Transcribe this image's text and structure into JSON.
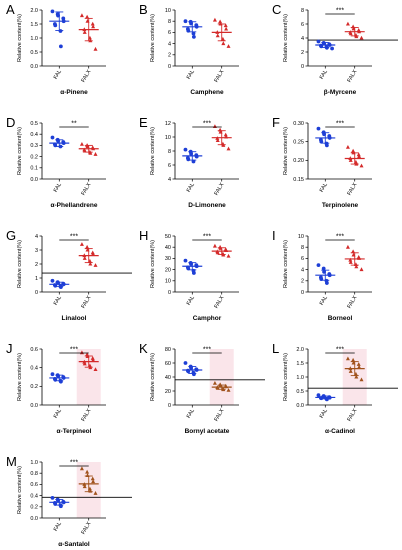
{
  "colors": {
    "fal": "#1e3fd6",
    "falx": "#d42a2a",
    "falx_brown": "#a0521c",
    "highlight": "#f6cfd9",
    "axis": "#000000",
    "refline": "#000000"
  },
  "chart_data": [
    {
      "type": "scatter",
      "panel": "A",
      "title": "α-Pinene",
      "ylabel": "Relative content(%)",
      "categories": [
        "FAL",
        "FALX"
      ],
      "ylim": [
        0,
        2.0
      ],
      "yticks": [
        0,
        0.5,
        1.0,
        1.5,
        2.0
      ],
      "ytick_labels": [
        "0.0",
        "0.5",
        "1.0",
        "1.5",
        "2.0"
      ],
      "significance": "",
      "reference_line": null,
      "series": [
        {
          "values": [
            1.95,
            1.85,
            1.8,
            1.7,
            1.6,
            1.5,
            1.45,
            1.25,
            0.7
          ],
          "mean": 1.6,
          "sd": 0.33,
          "color": "fal"
        },
        {
          "values": [
            1.8,
            1.75,
            1.6,
            1.5,
            1.4,
            1.3,
            1.2,
            1.0,
            0.9,
            0.6
          ],
          "mean": 1.3,
          "sd": 0.4,
          "color": "falx"
        }
      ]
    },
    {
      "type": "scatter",
      "panel": "B",
      "title": "Camphene",
      "ylabel": "Relative content(%)",
      "categories": [
        "FAL",
        "FALX"
      ],
      "ylim": [
        0,
        10
      ],
      "yticks": [
        0,
        2,
        4,
        6,
        8,
        10
      ],
      "ytick_labels": [
        "0",
        "2",
        "4",
        "6",
        "8",
        "10"
      ],
      "significance": "",
      "reference_line": null,
      "series": [
        {
          "values": [
            8.0,
            7.9,
            7.6,
            7.3,
            7.0,
            6.6,
            6.3,
            5.8,
            5.2
          ],
          "mean": 7.0,
          "sd": 0.9,
          "color": "fal"
        },
        {
          "values": [
            8.2,
            7.9,
            7.5,
            7.2,
            6.6,
            6.0,
            5.4,
            4.8,
            4.0,
            3.5
          ],
          "mean": 6.0,
          "sd": 1.5,
          "color": "falx"
        }
      ]
    },
    {
      "type": "scatter",
      "panel": "C",
      "title": "β-Myrcene",
      "ylabel": "Relative content(%)",
      "categories": [
        "FAL",
        "FALX"
      ],
      "ylim": [
        0,
        8
      ],
      "yticks": [
        0,
        2,
        4,
        6,
        8
      ],
      "ytick_labels": [
        "0",
        "2",
        "4",
        "6",
        "8"
      ],
      "significance": "***",
      "reference_line": 3.7,
      "series": [
        {
          "values": [
            3.5,
            3.3,
            3.2,
            3.1,
            3.0,
            2.9,
            2.8,
            2.7,
            2.6,
            2.5
          ],
          "mean": 3.0,
          "sd": 0.35,
          "color": "fal"
        },
        {
          "values": [
            6.0,
            5.6,
            5.3,
            5.1,
            4.9,
            4.8,
            4.6,
            4.4,
            4.2,
            4.0
          ],
          "mean": 4.9,
          "sd": 0.6,
          "color": "falx"
        }
      ]
    },
    {
      "type": "scatter",
      "panel": "D",
      "title": "α-Phellandrene",
      "ylabel": "Relative content(%)",
      "categories": [
        "FAL",
        "FALX"
      ],
      "ylim": [
        0,
        0.5
      ],
      "yticks": [
        0,
        0.1,
        0.2,
        0.3,
        0.4,
        0.5
      ],
      "ytick_labels": [
        "0.0",
        "0.1",
        "0.2",
        "0.3",
        "0.4",
        "0.5"
      ],
      "significance": "**",
      "reference_line": null,
      "series": [
        {
          "values": [
            0.37,
            0.35,
            0.34,
            0.33,
            0.32,
            0.31,
            0.3,
            0.29
          ],
          "mean": 0.32,
          "sd": 0.03,
          "color": "fal"
        },
        {
          "values": [
            0.31,
            0.3,
            0.29,
            0.28,
            0.27,
            0.26,
            0.25,
            0.24,
            0.23,
            0.22
          ],
          "mean": 0.27,
          "sd": 0.03,
          "color": "falx"
        }
      ]
    },
    {
      "type": "scatter",
      "panel": "E",
      "title": "D-Limonene",
      "ylabel": "Relative content(%)",
      "categories": [
        "FAL",
        "FALX"
      ],
      "ylim": [
        4,
        12
      ],
      "yticks": [
        4,
        6,
        8,
        10,
        12
      ],
      "ytick_labels": [
        "4",
        "6",
        "8",
        "10",
        "12"
      ],
      "significance": "***",
      "reference_line": null,
      "series": [
        {
          "values": [
            8.2,
            7.9,
            7.6,
            7.4,
            7.2,
            7.0,
            6.8,
            6.5
          ],
          "mean": 7.3,
          "sd": 0.6,
          "color": "fal"
        },
        {
          "values": [
            11.5,
            11.0,
            10.7,
            10.3,
            10.0,
            9.8,
            9.5,
            9.0,
            8.8,
            8.3
          ],
          "mean": 9.9,
          "sd": 1.0,
          "color": "falx"
        }
      ]
    },
    {
      "type": "scatter",
      "panel": "F",
      "title": "Terpinolene",
      "ylabel": "Relative content(%)",
      "categories": [
        "FAL",
        "FALX"
      ],
      "ylim": [
        0.15,
        0.3
      ],
      "yticks": [
        0.15,
        0.2,
        0.25,
        0.3
      ],
      "ytick_labels": [
        "0.15",
        "0.20",
        "0.25",
        "0.30"
      ],
      "significance": "***",
      "reference_line": null,
      "series": [
        {
          "values": [
            0.285,
            0.275,
            0.27,
            0.265,
            0.26,
            0.255,
            0.25,
            0.245,
            0.24
          ],
          "mean": 0.26,
          "sd": 0.014,
          "color": "fal"
        },
        {
          "values": [
            0.235,
            0.225,
            0.22,
            0.215,
            0.21,
            0.205,
            0.2,
            0.195,
            0.19,
            0.185
          ],
          "mean": 0.205,
          "sd": 0.015,
          "color": "falx"
        }
      ]
    },
    {
      "type": "scatter",
      "panel": "G",
      "title": "Linalool",
      "ylabel": "Relative content(%)",
      "categories": [
        "FAL",
        "FALX"
      ],
      "ylim": [
        0,
        4
      ],
      "yticks": [
        0,
        1,
        2,
        3,
        4
      ],
      "ytick_labels": [
        "0",
        "1",
        "2",
        "3",
        "4"
      ],
      "significance": "***",
      "reference_line": 1.35,
      "series": [
        {
          "values": [
            0.8,
            0.7,
            0.65,
            0.6,
            0.55,
            0.5,
            0.45,
            0.4,
            0.35
          ],
          "mean": 0.55,
          "sd": 0.15,
          "color": "fal"
        },
        {
          "values": [
            3.4,
            3.2,
            3.0,
            2.8,
            2.7,
            2.6,
            2.4,
            2.2,
            2.0,
            1.9
          ],
          "mean": 2.6,
          "sd": 0.5,
          "color": "falx"
        }
      ]
    },
    {
      "type": "scatter",
      "panel": "H",
      "title": "Camphor",
      "ylabel": "Relative content(%)",
      "categories": [
        "FAL",
        "FALX"
      ],
      "ylim": [
        0,
        50
      ],
      "yticks": [
        0,
        10,
        20,
        30,
        40,
        50
      ],
      "ytick_labels": [
        "0",
        "10",
        "20",
        "30",
        "40",
        "50"
      ],
      "significance": "***",
      "reference_line": null,
      "series": [
        {
          "values": [
            28,
            26,
            25,
            24,
            23,
            22,
            21,
            19,
            17
          ],
          "mean": 23,
          "sd": 3.2,
          "color": "fal"
        },
        {
          "values": [
            41,
            40,
            39,
            38,
            37,
            36,
            35,
            34,
            33,
            32
          ],
          "mean": 36.5,
          "sd": 3,
          "color": "falx"
        }
      ]
    },
    {
      "type": "scatter",
      "panel": "I",
      "title": "Borneol",
      "ylabel": "Relative content(%)",
      "categories": [
        "FAL",
        "FALX"
      ],
      "ylim": [
        0,
        10
      ],
      "yticks": [
        0,
        2,
        4,
        6,
        8,
        10
      ],
      "ytick_labels": [
        "0",
        "2",
        "4",
        "6",
        "8",
        "10"
      ],
      "significance": "***",
      "reference_line": null,
      "series": [
        {
          "values": [
            4.8,
            4.2,
            3.6,
            3.2,
            3.0,
            2.6,
            2.3,
            2.0,
            1.6
          ],
          "mean": 3.0,
          "sd": 0.9,
          "color": "fal"
        },
        {
          "values": [
            8.0,
            7.2,
            6.6,
            6.2,
            6.0,
            5.7,
            5.3,
            4.9,
            4.5,
            4.0
          ],
          "mean": 5.9,
          "sd": 1.1,
          "color": "falx"
        }
      ]
    },
    {
      "type": "scatter",
      "panel": "J",
      "title": "α-Terpineol",
      "ylabel": "Relative content(%)",
      "categories": [
        "FAL",
        "FALX"
      ],
      "ylim": [
        0,
        0.6
      ],
      "yticks": [
        0,
        0.2,
        0.4,
        0.6
      ],
      "ytick_labels": [
        "0.0",
        "0.2",
        "0.4",
        "0.6"
      ],
      "significance": "***",
      "reference_line": null,
      "series": [
        {
          "values": [
            0.33,
            0.32,
            0.31,
            0.3,
            0.29,
            0.28,
            0.27,
            0.26,
            0.25
          ],
          "mean": 0.29,
          "sd": 0.03,
          "color": "fal"
        },
        {
          "values": [
            0.56,
            0.54,
            0.52,
            0.5,
            0.48,
            0.46,
            0.44,
            0.42,
            0.4,
            0.38
          ],
          "mean": 0.465,
          "sd": 0.06,
          "color": "falx"
        }
      ]
    },
    {
      "type": "scatter",
      "panel": "K",
      "title": "Bornyl acetate",
      "ylabel": "Relative content(%)",
      "categories": [
        "FAL",
        "FALX"
      ],
      "ylim": [
        0,
        80
      ],
      "yticks": [
        0,
        20,
        40,
        60,
        80
      ],
      "ytick_labels": [
        "0",
        "20",
        "40",
        "60",
        "80"
      ],
      "significance": "***",
      "reference_line": 36,
      "series": [
        {
          "values": [
            60,
            55,
            53,
            51,
            50,
            49,
            48,
            46,
            44
          ],
          "mean": 50,
          "sd": 5,
          "color": "fal"
        },
        {
          "values": [
            31,
            29,
            28,
            27,
            26,
            25,
            24,
            23,
            22,
            21
          ],
          "mean": 25.5,
          "sd": 3,
          "color": "falx_brown"
        }
      ]
    },
    {
      "type": "scatter",
      "panel": "L",
      "title": "α-Cadinol",
      "ylabel": "Relative content(%)",
      "categories": [
        "FAL",
        "FALX"
      ],
      "ylim": [
        0,
        2.0
      ],
      "yticks": [
        0,
        0.5,
        1.0,
        1.5,
        2.0
      ],
      "ytick_labels": [
        "0.0",
        "0.5",
        "1.0",
        "1.5",
        "2.0"
      ],
      "significance": "***",
      "reference_line": 0.6,
      "series": [
        {
          "values": [
            0.35,
            0.32,
            0.3,
            0.28,
            0.26,
            0.25,
            0.24,
            0.22,
            0.2
          ],
          "mean": 0.27,
          "sd": 0.05,
          "color": "fal"
        },
        {
          "values": [
            1.65,
            1.6,
            1.5,
            1.45,
            1.35,
            1.3,
            1.2,
            1.1,
            1.0,
            0.9
          ],
          "mean": 1.3,
          "sd": 0.25,
          "color": "falx_brown"
        }
      ]
    },
    {
      "type": "scatter",
      "panel": "M",
      "title": "α-Santalol",
      "ylabel": "Relative content(%)",
      "categories": [
        "FAL",
        "FALX"
      ],
      "ylim": [
        0,
        1.0
      ],
      "yticks": [
        0,
        0.2,
        0.4,
        0.6,
        0.8,
        1.0
      ],
      "ytick_labels": [
        "0.0",
        "0.2",
        "0.4",
        "0.6",
        "0.8",
        "1.0"
      ],
      "significance": "***",
      "reference_line": 0.37,
      "series": [
        {
          "values": [
            0.36,
            0.33,
            0.31,
            0.29,
            0.28,
            0.27,
            0.25,
            0.23,
            0.21
          ],
          "mean": 0.28,
          "sd": 0.05,
          "color": "fal"
        },
        {
          "values": [
            0.88,
            0.82,
            0.76,
            0.7,
            0.65,
            0.6,
            0.56,
            0.52,
            0.48,
            0.44
          ],
          "mean": 0.61,
          "sd": 0.14,
          "color": "falx_brown"
        }
      ]
    }
  ]
}
